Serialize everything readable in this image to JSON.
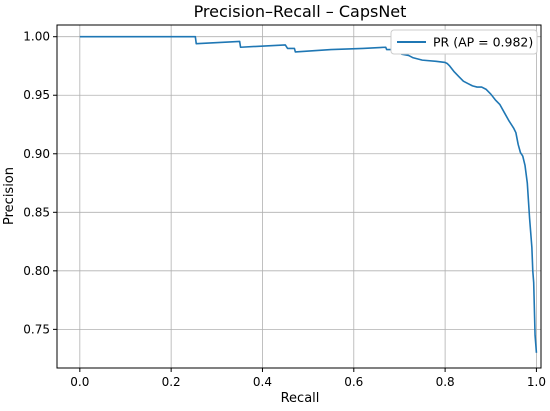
{
  "chart_data": {
    "type": "line",
    "title": "Precision–Recall – CapsNet",
    "xlabel": "Recall",
    "ylabel": "Precision",
    "xlim": [
      -0.05,
      1.01
    ],
    "ylim": [
      0.717,
      1.01
    ],
    "xticks": [
      0.0,
      0.2,
      0.4,
      0.6,
      0.8,
      1.0
    ],
    "yticks": [
      0.75,
      0.8,
      0.85,
      0.9,
      0.95,
      1.0
    ],
    "xtick_labels": [
      "0.0",
      "0.2",
      "0.4",
      "0.6",
      "0.8",
      "1.0"
    ],
    "ytick_labels": [
      "0.75",
      "0.80",
      "0.85",
      "0.90",
      "0.95",
      "1.00"
    ],
    "grid": true,
    "legend_position": "top-right",
    "series": [
      {
        "name": "PR (AP = 0.982)",
        "color": "#1f77b4",
        "x": [
          0.0,
          0.253,
          0.255,
          0.35,
          0.352,
          0.45,
          0.455,
          0.47,
          0.472,
          0.55,
          0.62,
          0.67,
          0.672,
          0.7,
          0.705,
          0.72,
          0.73,
          0.75,
          0.78,
          0.8,
          0.805,
          0.81,
          0.82,
          0.83,
          0.84,
          0.85,
          0.86,
          0.87,
          0.88,
          0.89,
          0.9,
          0.91,
          0.92,
          0.93,
          0.94,
          0.95,
          0.955,
          0.96,
          0.965,
          0.97,
          0.975,
          0.98,
          0.985,
          0.99,
          0.992,
          0.994,
          0.995,
          0.996,
          0.997,
          0.998,
          0.999,
          1.0
        ],
        "y": [
          1.0,
          1.0,
          0.994,
          0.996,
          0.991,
          0.993,
          0.99,
          0.99,
          0.987,
          0.989,
          0.99,
          0.991,
          0.989,
          0.989,
          0.985,
          0.984,
          0.982,
          0.98,
          0.979,
          0.978,
          0.977,
          0.975,
          0.97,
          0.966,
          0.962,
          0.96,
          0.958,
          0.957,
          0.957,
          0.955,
          0.951,
          0.946,
          0.942,
          0.935,
          0.928,
          0.922,
          0.918,
          0.908,
          0.901,
          0.898,
          0.89,
          0.875,
          0.845,
          0.82,
          0.8,
          0.79,
          0.775,
          0.76,
          0.745,
          0.74,
          0.735,
          0.73
        ]
      }
    ]
  }
}
